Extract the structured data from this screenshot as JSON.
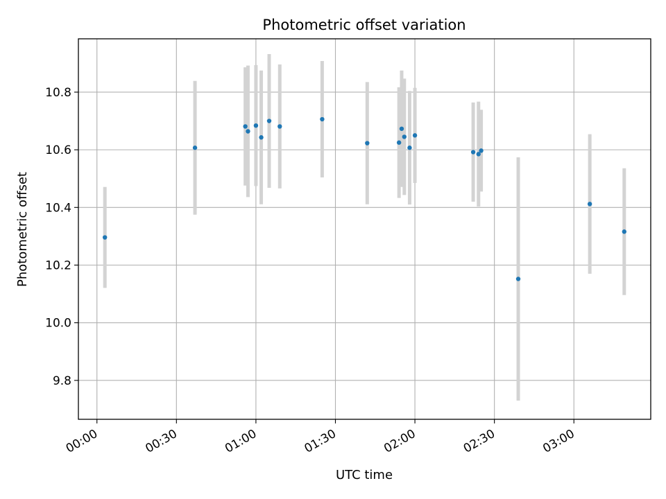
{
  "chart_data": {
    "type": "scatter",
    "title": "Photometric offset variation",
    "xlabel": "UTC time",
    "ylabel": "Photometric offset",
    "x_ticks": [
      "00:00",
      "00:30",
      "01:00",
      "01:30",
      "02:00",
      "02:30",
      "03:00"
    ],
    "y_ticks": [
      "9.8",
      "10.0",
      "10.2",
      "10.4",
      "10.6",
      "10.8"
    ],
    "xlim": [
      "23:53",
      "03:29"
    ],
    "ylim": [
      9.665,
      10.985
    ],
    "grid": true,
    "marker_color": "#1f77b4",
    "errorbar_color": "#d3d3d3",
    "points": [
      {
        "x": "00:03",
        "y": 10.296,
        "err": 0.175
      },
      {
        "x": "00:37",
        "y": 10.607,
        "err": 0.232
      },
      {
        "x": "00:56",
        "y": 10.681,
        "err": 0.205
      },
      {
        "x": "00:57",
        "y": 10.664,
        "err": 0.228
      },
      {
        "x": "01:00",
        "y": 10.684,
        "err": 0.21
      },
      {
        "x": "01:02",
        "y": 10.643,
        "err": 0.232
      },
      {
        "x": "01:05",
        "y": 10.7,
        "err": 0.232
      },
      {
        "x": "01:09",
        "y": 10.681,
        "err": 0.215
      },
      {
        "x": "01:25",
        "y": 10.706,
        "err": 0.202
      },
      {
        "x": "01:42",
        "y": 10.623,
        "err": 0.212
      },
      {
        "x": "01:54",
        "y": 10.625,
        "err": 0.192
      },
      {
        "x": "01:55",
        "y": 10.673,
        "err": 0.202
      },
      {
        "x": "01:56",
        "y": 10.645,
        "err": 0.202
      },
      {
        "x": "01:58",
        "y": 10.607,
        "err": 0.197
      },
      {
        "x": "02:00",
        "y": 10.65,
        "err": 0.165
      },
      {
        "x": "02:22",
        "y": 10.592,
        "err": 0.172
      },
      {
        "x": "02:24",
        "y": 10.585,
        "err": 0.182
      },
      {
        "x": "02:25",
        "y": 10.597,
        "err": 0.142
      },
      {
        "x": "02:39",
        "y": 10.152,
        "err": 0.422
      },
      {
        "x": "03:06",
        "y": 10.412,
        "err": 0.242
      },
      {
        "x": "03:19",
        "y": 10.316,
        "err": 0.22
      }
    ]
  }
}
